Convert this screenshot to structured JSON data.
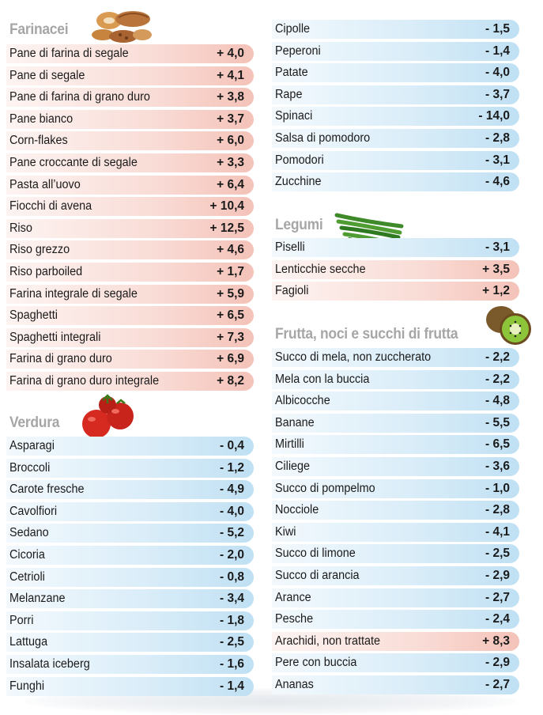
{
  "left": {
    "farinacei": {
      "title": "Farinacei",
      "icon": "bread-icon",
      "rows": [
        {
          "name": "Pane di farina di segale",
          "value": "+ 4,0",
          "sign": "pos"
        },
        {
          "name": "Pane di segale",
          "value": "+ 4,1",
          "sign": "pos"
        },
        {
          "name": "Pane di farina di grano duro",
          "value": "+ 3,8",
          "sign": "pos"
        },
        {
          "name": "Pane bianco",
          "value": "+ 3,7",
          "sign": "pos"
        },
        {
          "name": "Corn-flakes",
          "value": "+ 6,0",
          "sign": "pos"
        },
        {
          "name": "Pane croccante di segale",
          "value": "+ 3,3",
          "sign": "pos"
        },
        {
          "name": "Pasta all’uovo",
          "value": "+ 6,4",
          "sign": "pos"
        },
        {
          "name": "Fiocchi di avena",
          "value": "+ 10,4",
          "sign": "pos"
        },
        {
          "name": "Riso",
          "value": "+ 12,5",
          "sign": "pos"
        },
        {
          "name": "Riso grezzo",
          "value": "+ 4,6",
          "sign": "pos"
        },
        {
          "name": "Riso parboiled",
          "value": "+ 1,7",
          "sign": "pos"
        },
        {
          "name": "Farina integrale di segale",
          "value": "+ 5,9",
          "sign": "pos"
        },
        {
          "name": "Spaghetti",
          "value": "+ 6,5",
          "sign": "pos"
        },
        {
          "name": "Spaghetti integrali",
          "value": "+ 7,3",
          "sign": "pos"
        },
        {
          "name": "Farina di grano duro",
          "value": "+ 6,9",
          "sign": "pos"
        },
        {
          "name": "Farina di grano duro integrale",
          "value": "+ 8,2",
          "sign": "pos"
        }
      ]
    },
    "verdura": {
      "title": "Verdura",
      "icon": "tomato-icon",
      "rows": [
        {
          "name": "Asparagi",
          "value": "- 0,4",
          "sign": "neg"
        },
        {
          "name": "Broccoli",
          "value": "- 1,2",
          "sign": "neg"
        },
        {
          "name": "Carote fresche",
          "value": "- 4,9",
          "sign": "neg"
        },
        {
          "name": "Cavolfiori",
          "value": "- 4,0",
          "sign": "neg"
        },
        {
          "name": "Sedano",
          "value": "- 5,2",
          "sign": "neg"
        },
        {
          "name": "Cicoria",
          "value": "- 2,0",
          "sign": "neg"
        },
        {
          "name": "Cetrioli",
          "value": "- 0,8",
          "sign": "neg"
        },
        {
          "name": "Melanzane",
          "value": "- 3,4",
          "sign": "neg"
        },
        {
          "name": "Porri",
          "value": "- 1,8",
          "sign": "neg"
        },
        {
          "name": "Lattuga",
          "value": "- 2,5",
          "sign": "neg"
        },
        {
          "name": "Insalata iceberg",
          "value": "- 1,6",
          "sign": "neg"
        },
        {
          "name": "Funghi",
          "value": "- 1,4",
          "sign": "neg"
        }
      ]
    }
  },
  "right": {
    "verdura_cont": {
      "rows": [
        {
          "name": "Cipolle",
          "value": "- 1,5",
          "sign": "neg"
        },
        {
          "name": "Peperoni",
          "value": "- 1,4",
          "sign": "neg"
        },
        {
          "name": "Patate",
          "value": "- 4,0",
          "sign": "neg"
        },
        {
          "name": "Rape",
          "value": "- 3,7",
          "sign": "neg"
        },
        {
          "name": "Spinaci",
          "value": "- 14,0",
          "sign": "neg"
        },
        {
          "name": "Salsa di pomodoro",
          "value": "- 2,8",
          "sign": "neg"
        },
        {
          "name": "Pomodori",
          "value": "- 3,1",
          "sign": "neg"
        },
        {
          "name": "Zucchine",
          "value": "- 4,6",
          "sign": "neg"
        }
      ]
    },
    "legumi": {
      "title": "Legumi",
      "icon": "green-beans-icon",
      "rows": [
        {
          "name": "Piselli",
          "value": "- 3,1",
          "sign": "neg"
        },
        {
          "name": "Lenticchie secche",
          "value": "+ 3,5",
          "sign": "pos"
        },
        {
          "name": "Fagioli",
          "value": "+ 1,2",
          "sign": "pos"
        }
      ]
    },
    "frutta": {
      "title": "Frutta, noci e succhi di frutta",
      "icon": "kiwi-icon",
      "rows": [
        {
          "name": "Succo di mela, non zuccherato",
          "value": "- 2,2",
          "sign": "neg"
        },
        {
          "name": "Mela con la buccia",
          "value": "- 2,2",
          "sign": "neg"
        },
        {
          "name": "Albicocche",
          "value": "- 4,8",
          "sign": "neg"
        },
        {
          "name": "Banane",
          "value": "- 5,5",
          "sign": "neg"
        },
        {
          "name": "Mirtilli",
          "value": "- 6,5",
          "sign": "neg"
        },
        {
          "name": "Ciliege",
          "value": "- 3,6",
          "sign": "neg"
        },
        {
          "name": "Succo di pompelmo",
          "value": "- 1,0",
          "sign": "neg"
        },
        {
          "name": "Nocciole",
          "value": "- 2,8",
          "sign": "neg"
        },
        {
          "name": "Kiwi",
          "value": "- 4,1",
          "sign": "neg"
        },
        {
          "name": "Succo di limone",
          "value": "- 2,5",
          "sign": "neg"
        },
        {
          "name": "Succo di arancia",
          "value": "- 2,9",
          "sign": "neg"
        },
        {
          "name": "Arance",
          "value": "- 2,7",
          "sign": "neg"
        },
        {
          "name": "Pesche",
          "value": "- 2,4",
          "sign": "neg"
        },
        {
          "name": "Arachidi, non trattate",
          "value": "+ 8,3",
          "sign": "pos"
        },
        {
          "name": "Pere con buccia",
          "value": "- 2,9",
          "sign": "neg"
        },
        {
          "name": "Ananas",
          "value": "- 2,7",
          "sign": "neg"
        }
      ]
    }
  }
}
